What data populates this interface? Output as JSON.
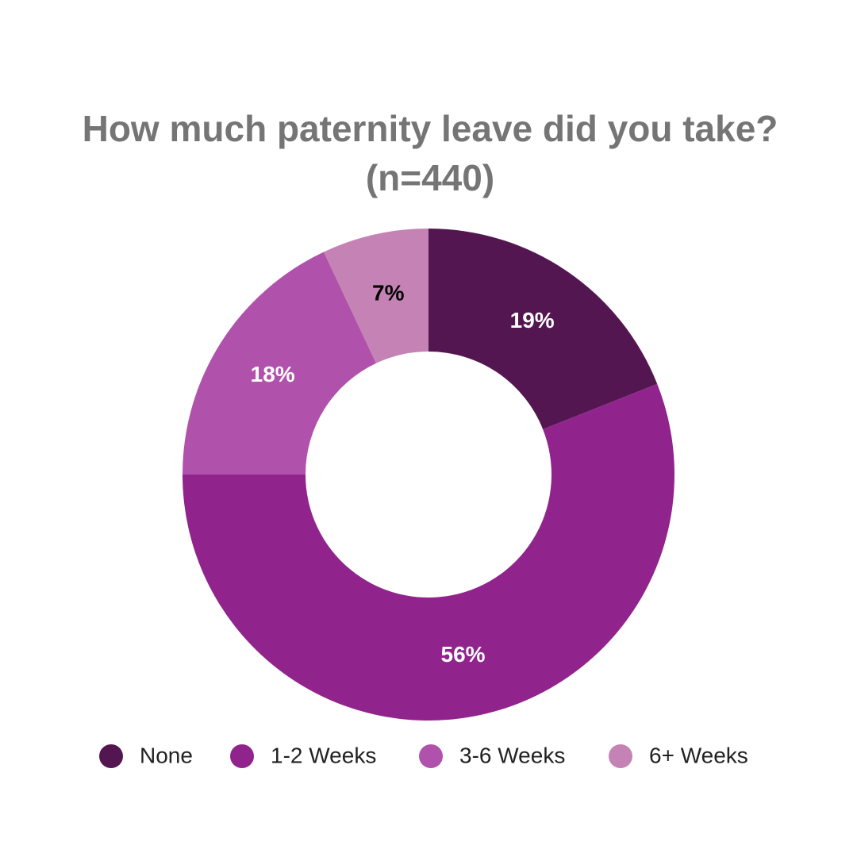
{
  "chart_data": {
    "type": "donut",
    "title": "How much paternity leave did you take?",
    "subtitle": "(n=440)",
    "categories": [
      "None",
      "1-2 Weeks",
      "3-6 Weeks",
      "6+ Weeks"
    ],
    "values": [
      19,
      56,
      18,
      7
    ],
    "value_labels": [
      "19%",
      "56%",
      "18%",
      "7%"
    ],
    "colors": [
      "#541650",
      "#90248c",
      "#b052ab",
      "#c582b5"
    ],
    "value_label_colors": [
      "#ffffff",
      "#ffffff",
      "#ffffff",
      "#000000"
    ],
    "legend": "bottom"
  }
}
